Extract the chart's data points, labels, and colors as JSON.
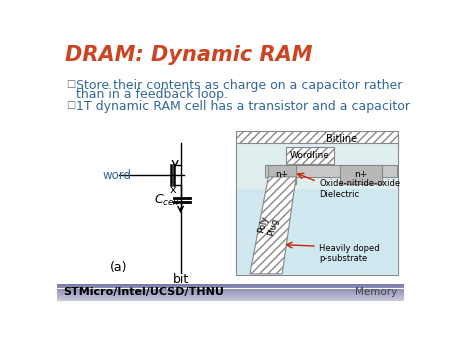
{
  "title": "DRAM: Dynamic RAM",
  "title_color": "#cc4422",
  "title_fontsize": 15,
  "bullet1_line1": "Store their contents as charge on a capacitor rather",
  "bullet1_line2": "than in a feedback loop.",
  "bullet2": "1T dynamic RAM cell has a transistor and a capacitor",
  "bullet_color": "#336699",
  "bullet_fontsize": 9,
  "footer_left": "STMicro/Intel/UCSD/THNU",
  "footer_right": "Memory",
  "footer_color": "#000000",
  "background_color": "#ffffff",
  "footer_bg_color": "#8888bb",
  "word_color": "#336699"
}
